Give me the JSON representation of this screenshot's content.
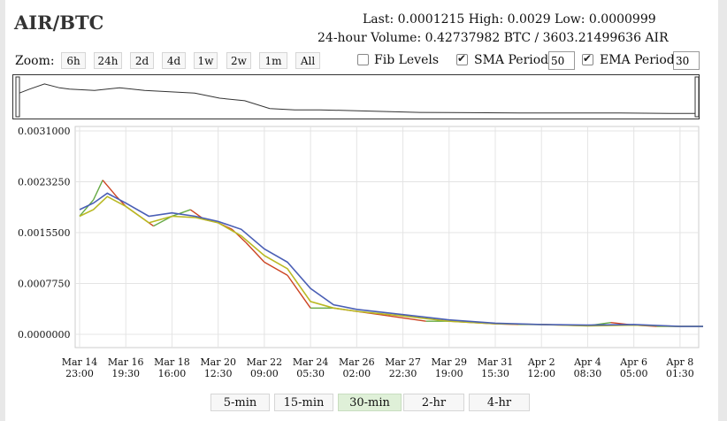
{
  "title": "AIR/BTC",
  "stats": {
    "line1": "Last: 0.0001215  High: 0.0029  Low: 0.0000999",
    "line2": "24-hour Volume: 0.42737982 BTC / 3603.21499636 AIR"
  },
  "zoom": {
    "label": "Zoom:",
    "buttons": [
      "6h",
      "24h",
      "2d",
      "4d",
      "1w",
      "2w",
      "1m",
      "All"
    ]
  },
  "options": {
    "fib_label": "Fib Levels",
    "fib_checked": false,
    "sma_label": "SMA Period:",
    "sma_checked": true,
    "sma_value": "50",
    "ema_label": "EMA Period:",
    "ema_checked": true,
    "ema_value": "30"
  },
  "periods": {
    "buttons": [
      "5-min",
      "15-min",
      "30-min",
      "2-hr",
      "4-hr"
    ],
    "active": "30-min"
  },
  "colors": {
    "sma": "#4a5fb5",
    "ema": "#b9b923",
    "up": "#66aa44",
    "down": "#cc4422",
    "volume": "#c8c8c8",
    "grid": "#e4e4e4"
  },
  "chart_data": {
    "type": "line",
    "title": "",
    "xlabel": "",
    "ylabel": "",
    "ylim": [
      0,
      0.0031
    ],
    "y_ticks": [
      "0.0031000",
      "0.0023250",
      "0.0015500",
      "0.0007750",
      "0.0000000"
    ],
    "y_tick_values": [
      0.0031,
      0.002325,
      0.00155,
      0.000775,
      0
    ],
    "x_ticks": [
      {
        "l1": "Mar 14",
        "l2": "23:00"
      },
      {
        "l1": "Mar 16",
        "l2": "19:30"
      },
      {
        "l1": "Mar 18",
        "l2": "16:00"
      },
      {
        "l1": "Mar 20",
        "l2": "12:30"
      },
      {
        "l1": "Mar 22",
        "l2": "09:00"
      },
      {
        "l1": "Mar 24",
        "l2": "05:30"
      },
      {
        "l1": "Mar 26",
        "l2": "02:00"
      },
      {
        "l1": "Mar 27",
        "l2": "22:30"
      },
      {
        "l1": "Mar 29",
        "l2": "19:00"
      },
      {
        "l1": "Mar 31",
        "l2": "15:30"
      },
      {
        "l1": "Apr 2",
        "l2": "12:00"
      },
      {
        "l1": "Apr 4",
        "l2": "08:30"
      },
      {
        "l1": "Apr 6",
        "l2": "05:00"
      },
      {
        "l1": "Apr 8",
        "l2": "01:30"
      }
    ],
    "grid": true,
    "series": [
      {
        "key": "price",
        "x": [
          0,
          0.3,
          0.5,
          0.8,
          1,
          1.3,
          1.6,
          2,
          2.4,
          2.7,
          3,
          3.3,
          3.6,
          4,
          4.5,
          5,
          5.5,
          6,
          6.5,
          7,
          7.5,
          8,
          8.5,
          9,
          9.5,
          10,
          10.5,
          11,
          11.5,
          12,
          12.5,
          13,
          13.5
        ],
        "values": [
          0.0018,
          0.00205,
          0.00235,
          0.0021,
          0.00195,
          0.0018,
          0.00165,
          0.0018,
          0.0019,
          0.00175,
          0.0017,
          0.0016,
          0.0014,
          0.0011,
          0.0009,
          0.0004,
          0.0004,
          0.00035,
          0.0003,
          0.00025,
          0.0002,
          0.0002,
          0.00018,
          0.00016,
          0.00015,
          0.00015,
          0.00014,
          0.00013,
          0.00018,
          0.00014,
          0.00012,
          0.00012,
          0.00012
        ]
      },
      {
        "key": "sma",
        "x": [
          0,
          0.3,
          0.6,
          1,
          1.5,
          2,
          2.5,
          3,
          3.5,
          4,
          4.5,
          5,
          5.5,
          6,
          7,
          8,
          9,
          10,
          11,
          12,
          13,
          13.5
        ],
        "values": [
          0.0019,
          0.002,
          0.00215,
          0.002,
          0.0018,
          0.00185,
          0.0018,
          0.00172,
          0.0016,
          0.0013,
          0.0011,
          0.0007,
          0.00045,
          0.00038,
          0.0003,
          0.00022,
          0.00017,
          0.00015,
          0.00014,
          0.00015,
          0.00012,
          0.00012
        ]
      },
      {
        "key": "ema",
        "x": [
          0,
          0.3,
          0.6,
          1,
          1.5,
          2,
          2.5,
          3,
          3.5,
          4,
          4.5,
          5,
          5.5,
          6,
          7,
          8,
          9,
          10,
          11,
          12,
          13,
          13.5
        ],
        "values": [
          0.0018,
          0.0019,
          0.0021,
          0.00195,
          0.0017,
          0.0018,
          0.00178,
          0.0017,
          0.0015,
          0.0012,
          0.001,
          0.0005,
          0.0004,
          0.00035,
          0.00028,
          0.0002,
          0.00016,
          0.00015,
          0.00013,
          0.00014,
          0.00012,
          0.00012
        ]
      }
    ],
    "navigator": {
      "x": [
        0,
        0.2,
        0.5,
        0.8,
        1,
        1.5,
        2,
        2.5,
        3,
        3.5,
        4,
        4.5,
        5,
        5.5,
        6,
        7,
        8,
        9,
        10,
        11,
        12,
        13,
        13.5
      ],
      "values": [
        0.0017,
        0.002,
        0.0024,
        0.0021,
        0.002,
        0.0019,
        0.0021,
        0.0019,
        0.0018,
        0.0017,
        0.0013,
        0.0011,
        0.0005,
        0.0004,
        0.0004,
        0.0003,
        0.0002,
        0.00018,
        0.00015,
        0.00015,
        0.00015,
        0.00012,
        0.00012
      ]
    }
  }
}
